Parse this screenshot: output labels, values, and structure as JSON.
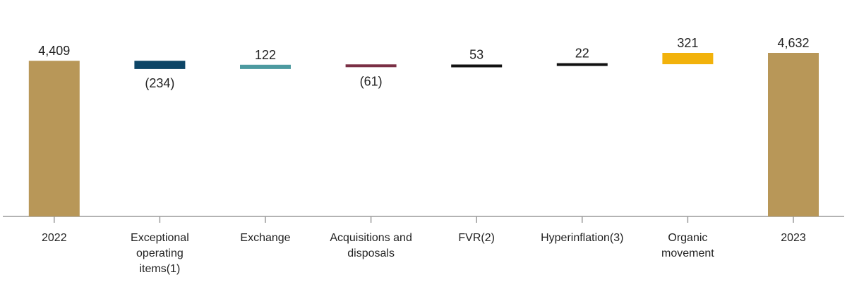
{
  "chart_data": {
    "type": "bar",
    "subtype": "waterfall",
    "categories": [
      [
        "2022"
      ],
      [
        "Exceptional",
        "operating",
        "items(1)"
      ],
      [
        "Exchange"
      ],
      [
        "Acquisitions and",
        "disposals"
      ],
      [
        "FVR(2)"
      ],
      [
        "Hyperinflation(3)"
      ],
      [
        "Organic",
        "movement"
      ],
      [
        "2023"
      ]
    ],
    "values": [
      4409,
      -234,
      122,
      -61,
      53,
      22,
      321,
      4632
    ],
    "bar_kinds": [
      "total",
      "delta",
      "delta",
      "delta",
      "delta",
      "delta",
      "delta",
      "total"
    ],
    "data_labels": [
      "4,409",
      "(234)",
      "122",
      "(61)",
      "53",
      "22",
      "321",
      "4,632"
    ],
    "colors": [
      "#b89758",
      "#0d4566",
      "#4d9aa0",
      "#7a2f45",
      "#111111",
      "#111111",
      "#f2b20b",
      "#b89758"
    ],
    "ylim": [
      0,
      4632
    ],
    "grid": false,
    "title": "",
    "xlabel": "",
    "ylabel": ""
  }
}
